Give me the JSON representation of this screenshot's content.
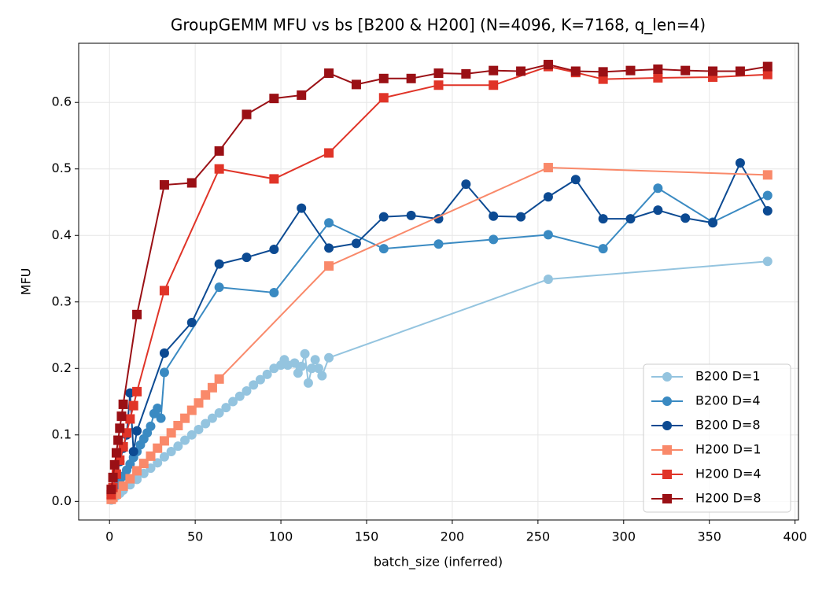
{
  "chart_data": {
    "type": "line",
    "title": "GroupGEMM MFU vs bs [B200 & H200] (N=4096, K=7168, q_len=4)",
    "x_label": "batch_size (inferred)",
    "y_label": "MFU",
    "xlim": [
      -18,
      402
    ],
    "ylim": [
      -0.028,
      0.689
    ],
    "xticks": [
      0,
      50,
      100,
      150,
      200,
      250,
      300,
      350,
      400
    ],
    "yticks": [
      {
        "value": 0,
        "label": "0.0"
      },
      0.1,
      0.2,
      0.3,
      0.4,
      0.5,
      0.6
    ],
    "grid": true,
    "legend": "lower right",
    "series": [
      {
        "name": "B200 D=1",
        "color": "#94c4df",
        "marker": "circle",
        "x": [
          1,
          2,
          4,
          6,
          8,
          12,
          16,
          20,
          24,
          28,
          32,
          36,
          40,
          44,
          48,
          52,
          56,
          60,
          64,
          68,
          72,
          76,
          80,
          84,
          88,
          92,
          96,
          100,
          102,
          104,
          108,
          110,
          112,
          114,
          116,
          118,
          120,
          122,
          124,
          128,
          256,
          384
        ],
        "values": [
          0.002,
          0.004,
          0.008,
          0.012,
          0.017,
          0.025,
          0.033,
          0.042,
          0.05,
          0.058,
          0.067,
          0.075,
          0.083,
          0.092,
          0.1,
          0.108,
          0.117,
          0.125,
          0.133,
          0.141,
          0.15,
          0.158,
          0.166,
          0.175,
          0.183,
          0.191,
          0.2,
          0.205,
          0.213,
          0.205,
          0.208,
          0.193,
          0.203,
          0.222,
          0.178,
          0.2,
          0.213,
          0.2,
          0.189,
          0.216,
          0.334,
          0.361
        ]
      },
      {
        "name": "B200 D=4",
        "color": "#3a8ac2",
        "marker": "circle",
        "x": [
          1,
          2,
          4,
          6,
          8,
          10,
          12,
          14,
          16,
          18,
          20,
          22,
          24,
          26,
          28,
          30,
          32,
          64,
          96,
          128,
          160,
          192,
          224,
          256,
          288,
          320,
          352,
          384
        ],
        "values": [
          0.005,
          0.009,
          0.019,
          0.028,
          0.038,
          0.047,
          0.056,
          0.066,
          0.075,
          0.085,
          0.094,
          0.103,
          0.113,
          0.132,
          0.14,
          0.125,
          0.194,
          0.322,
          0.314,
          0.419,
          0.38,
          0.387,
          0.394,
          0.401,
          0.38,
          0.471,
          0.42,
          0.46
        ]
      },
      {
        "name": "B200 D=8",
        "color": "#0c4a92",
        "marker": "circle",
        "x": [
          1,
          2,
          4,
          6,
          8,
          10,
          12,
          14,
          16,
          32,
          48,
          64,
          80,
          96,
          112,
          128,
          144,
          160,
          176,
          192,
          208,
          224,
          240,
          256,
          272,
          288,
          304,
          320,
          336,
          352,
          368,
          384
        ],
        "values": [
          0.01,
          0.02,
          0.04,
          0.06,
          0.08,
          0.1,
          0.163,
          0.075,
          0.106,
          0.223,
          0.269,
          0.357,
          0.367,
          0.379,
          0.441,
          0.381,
          0.388,
          0.428,
          0.43,
          0.425,
          0.477,
          0.429,
          0.428,
          0.458,
          0.484,
          0.425,
          0.425,
          0.438,
          0.426,
          0.419,
          0.509,
          0.437
        ]
      },
      {
        "name": "H200 D=1",
        "color": "#f9896a",
        "marker": "square",
        "x": [
          1,
          2,
          4,
          8,
          12,
          16,
          20,
          24,
          28,
          32,
          36,
          40,
          44,
          48,
          52,
          56,
          60,
          64,
          128,
          256,
          384
        ],
        "values": [
          0.003,
          0.006,
          0.011,
          0.023,
          0.034,
          0.046,
          0.057,
          0.068,
          0.08,
          0.091,
          0.103,
          0.114,
          0.125,
          0.137,
          0.148,
          0.16,
          0.171,
          0.184,
          0.354,
          0.502,
          0.491
        ]
      },
      {
        "name": "H200 D=4",
        "color": "#e03428",
        "marker": "square",
        "x": [
          1,
          2,
          4,
          6,
          8,
          10,
          12,
          14,
          16,
          32,
          64,
          96,
          128,
          160,
          192,
          224,
          256,
          272,
          288,
          320,
          352,
          384
        ],
        "values": [
          0.01,
          0.021,
          0.041,
          0.062,
          0.082,
          0.103,
          0.124,
          0.144,
          0.165,
          0.317,
          0.5,
          0.485,
          0.524,
          0.607,
          0.626,
          0.626,
          0.654,
          0.645,
          0.635,
          0.637,
          0.638,
          0.642
        ]
      },
      {
        "name": "H200 D=8",
        "color": "#9a1015",
        "marker": "square",
        "x": [
          1,
          2,
          3,
          4,
          5,
          6,
          7,
          8,
          16,
          32,
          48,
          64,
          80,
          96,
          112,
          128,
          144,
          160,
          176,
          192,
          208,
          224,
          240,
          256,
          272,
          288,
          304,
          320,
          336,
          352,
          368,
          384
        ],
        "values": [
          0.018,
          0.036,
          0.055,
          0.073,
          0.092,
          0.11,
          0.128,
          0.146,
          0.281,
          0.476,
          0.479,
          0.527,
          0.582,
          0.606,
          0.611,
          0.644,
          0.627,
          0.636,
          0.636,
          0.644,
          0.643,
          0.648,
          0.647,
          0.657,
          0.647,
          0.646,
          0.648,
          0.65,
          0.648,
          0.647,
          0.647,
          0.654
        ]
      }
    ]
  }
}
